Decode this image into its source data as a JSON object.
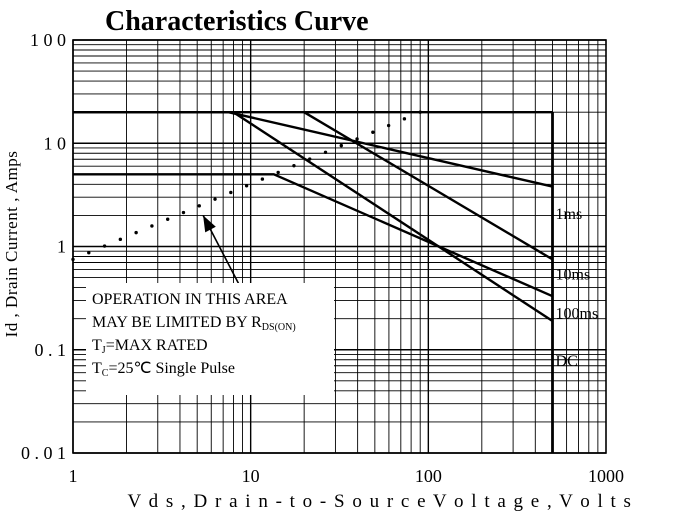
{
  "chart_data": {
    "type": "line",
    "title": "Characteristics Curve",
    "xlabel": "V d s , D r a i n - t o - S o u r c e  V o l t a g e , V o l t s",
    "ylabel": "Id , Drain Current , Amps",
    "x_scale": "log",
    "y_scale": "log",
    "xlim": [
      1,
      1000
    ],
    "ylim": [
      0.01,
      100
    ],
    "grid": true,
    "x_ticks": [
      {
        "value": 1,
        "label": "1"
      },
      {
        "value": 10,
        "label": "10"
      },
      {
        "value": 100,
        "label": "100"
      },
      {
        "value": 1000,
        "label": "1000"
      }
    ],
    "y_ticks": [
      {
        "value": 100,
        "label": "1 0 0"
      },
      {
        "value": 10,
        "label": "1 0"
      },
      {
        "value": 1,
        "label": "1"
      },
      {
        "value": 0.1,
        "label": "0 . 1"
      },
      {
        "value": 0.01,
        "label": "0 . 0 1"
      }
    ],
    "series": [
      {
        "name": "1ms",
        "x": [
          1,
          7.5,
          500
        ],
        "y": [
          20,
          20,
          3.8
        ],
        "label_at": [
          520,
          2.1
        ]
      },
      {
        "name": "10ms",
        "x": [
          20,
          500
        ],
        "y": [
          20,
          0.75
        ],
        "label_at": [
          520,
          0.55
        ]
      },
      {
        "name": "100ms",
        "x": [
          1,
          13.5,
          500
        ],
        "y": [
          5,
          5,
          0.33
        ],
        "label_at": [
          520,
          0.23
        ]
      },
      {
        "name": "DC",
        "x": [
          500,
          500
        ],
        "y": [
          20,
          0.01
        ],
        "label_at": [
          520,
          0.08
        ]
      }
    ],
    "extra_lines": [
      {
        "x": [
          8,
          500
        ],
        "y": [
          20,
          0.19
        ]
      },
      {
        "x": [
          1,
          500
        ],
        "y": [
          20,
          20
        ]
      }
    ],
    "rds_limit_line": {
      "style": "dotted",
      "x": [
        1,
        90
      ],
      "y": [
        0.75,
        20
      ]
    },
    "annotation": {
      "lines": [
        {
          "text": "OPERATION IN THIS AREA"
        },
        {
          "text": "MAY BE LIMITED BY R",
          "sub": "DS(ON)"
        },
        {
          "text": "T",
          "sub": "J",
          "rest": "=MAX RATED"
        },
        {
          "text": "T",
          "sub": "C",
          "rest": "=25℃    Single Pulse"
        }
      ],
      "arrow_from": [
        9.4,
        0.32
      ],
      "arrow_to": [
        5.4,
        2.0
      ]
    }
  }
}
